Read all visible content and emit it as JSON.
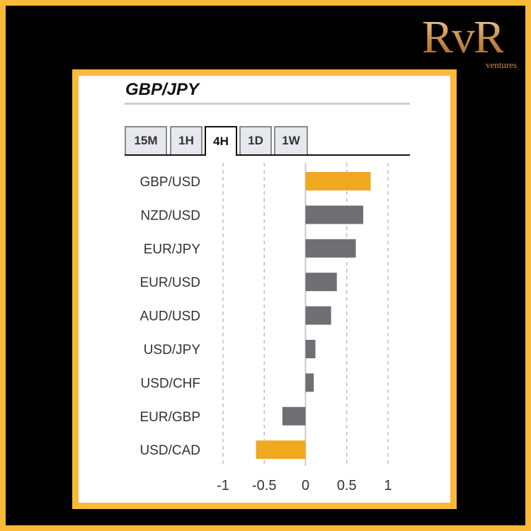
{
  "logo": {
    "main": "RvR",
    "sub": "ventures"
  },
  "title": "GBP/JPY",
  "tabs": [
    {
      "label": "15M",
      "active": false
    },
    {
      "label": "1H",
      "active": false
    },
    {
      "label": "4H",
      "active": true
    },
    {
      "label": "1D",
      "active": false
    },
    {
      "label": "1W",
      "active": false
    }
  ],
  "colors": {
    "frame": "#fbb93a",
    "highlight_bar": "#f0a81f",
    "normal_bar": "#6e6e73"
  },
  "chart_data": {
    "type": "bar",
    "orientation": "horizontal",
    "title": "GBP/JPY",
    "categories": [
      "GBP/USD",
      "NZD/USD",
      "EUR/JPY",
      "EUR/USD",
      "AUD/USD",
      "USD/JPY",
      "USD/CHF",
      "EUR/GBP",
      "USD/CAD"
    ],
    "values": [
      0.79,
      0.7,
      0.61,
      0.38,
      0.31,
      0.12,
      0.1,
      -0.28,
      -0.6
    ],
    "highlight": [
      true,
      false,
      false,
      false,
      false,
      false,
      false,
      false,
      true
    ],
    "xlim": [
      -1,
      1
    ],
    "xticks": [
      -1,
      -0.5,
      0,
      0.5,
      1
    ],
    "xtick_labels": [
      "-1",
      "-0.5",
      "0",
      "0.5",
      "1"
    ],
    "grid": "vertical dashed",
    "xlabel": "",
    "ylabel": ""
  }
}
